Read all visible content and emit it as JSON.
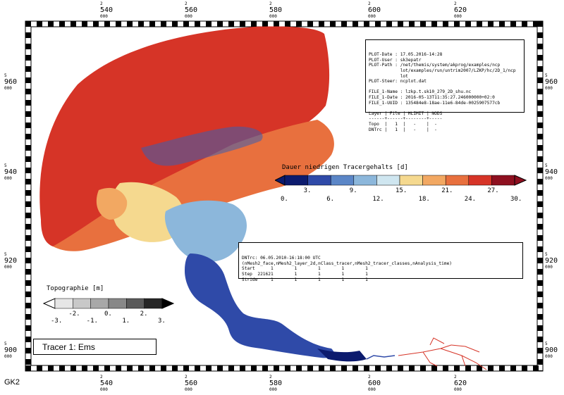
{
  "map": {
    "crs_label": "GK2",
    "x_ticks": [
      {
        "major": "2",
        "value": "540",
        "minor": "000"
      },
      {
        "major": "2",
        "value": "560",
        "minor": "000"
      },
      {
        "major": "2",
        "value": "580",
        "minor": "000"
      },
      {
        "major": "2",
        "value": "600",
        "minor": "000"
      },
      {
        "major": "2",
        "value": "620",
        "minor": "000"
      }
    ],
    "y_ticks": [
      {
        "major": "5",
        "value": "960",
        "minor": "000"
      },
      {
        "major": "5",
        "value": "940",
        "minor": "000"
      },
      {
        "major": "5",
        "value": "920",
        "minor": "000"
      },
      {
        "major": "5",
        "value": "900",
        "minor": "000"
      }
    ]
  },
  "plot_info": {
    "lines": [
      "PLOT-Date : 17.05.2016-14:28",
      "PLOT-User : sk3epatr",
      "PLOT-Path : /net/themis/system/akprog/examples/ncp",
      "            lot/examples/run/untrim2007/LZKP/hc/2D_1/ncp",
      "            lot",
      "PLOT-Steer: ncplot.dat",
      "",
      "FILE_1-Name : lzkp.t.sk10_279_2D_shu.nc",
      "FILE_1-Date : 2016-05-13T11:35:27.246000000+02:0",
      "FILE_1-UUID : 135484e8-18ae-11e6-84de-0025907577cb",
      "",
      "Layer | File | HLIMIT | NODS",
      "------+------+--------+-----",
      "Topo  |   1  |   -    |  -",
      "DNTrc |   1  |   -    |  -"
    ]
  },
  "variable_info": {
    "lines": [
      "DNTrc: 06.05.2010-16:18:00 UTC",
      "(nMesh2_face,nMesh2_layer_2d,nClass_tracer,nMesh2_tracer_classes,nAnalysis_time)",
      "Start      1        1        1        1        1",
      "Step  221621        1        1        1        1",
      "Stride     1        1        1        1        1"
    ]
  },
  "tracer_legend": {
    "title": "Dauer niedrigen Tracergehalts [d]",
    "colors": [
      "#0c1b6e",
      "#2f4aa8",
      "#5b86c7",
      "#8cb7db",
      "#cfe6f0",
      "#f5d98f",
      "#f2a862",
      "#e8703e",
      "#d63427",
      "#8e1020"
    ],
    "labels_low": [
      "0.",
      "3.",
      "6.",
      "9.",
      "12.",
      "15.",
      "18.",
      "21.",
      "24.",
      "27.",
      "30."
    ]
  },
  "topo_legend": {
    "title": "Topographie [m]",
    "colors": [
      "#ffffff",
      "#e6e6e6",
      "#c8c8c8",
      "#a8a8a8",
      "#888888",
      "#5a5a5a",
      "#262626",
      "#000000"
    ],
    "labels": [
      "-3.",
      "-2.",
      "-1.",
      "0.",
      "1.",
      "2.",
      "3."
    ]
  },
  "tracer_box": {
    "label": "Tracer 1: Ems"
  }
}
